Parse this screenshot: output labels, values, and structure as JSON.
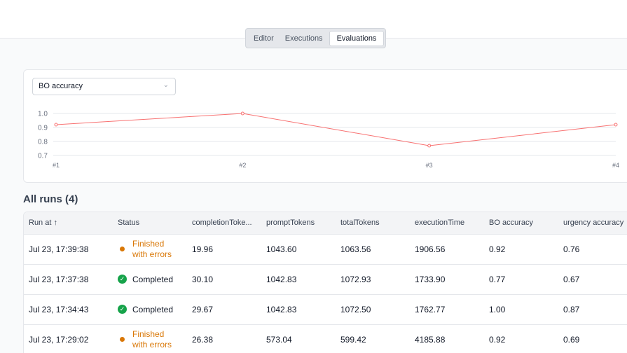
{
  "tabs": [
    {
      "label": "Editor",
      "active": false
    },
    {
      "label": "Executions",
      "active": false
    },
    {
      "label": "Evaluations",
      "active": true
    }
  ],
  "metric_select": {
    "value": "BO accuracy"
  },
  "chart_data": {
    "type": "line",
    "categories": [
      "#1",
      "#2",
      "#3",
      "#4"
    ],
    "values": [
      0.92,
      1.0,
      0.77,
      0.92
    ],
    "yticks": [
      "1.0",
      "0.9",
      "0.8",
      "0.7"
    ],
    "ylim": [
      0.7,
      1.0
    ],
    "color": "#f87171",
    "grid": true
  },
  "runs_title": "All runs (4)",
  "columns": [
    "Run at ↑",
    "Status",
    "completionToke...",
    "promptTokens",
    "totalTokens",
    "executionTime",
    "BO accuracy",
    "urgency accuracy"
  ],
  "rows": [
    {
      "run_at": "Jul 23, 17:39:38",
      "status": "Finished with errors",
      "status_type": "warn",
      "completion": "19.96",
      "prompt": "1043.60",
      "total": "1063.56",
      "exec": "1906.56",
      "bo": "0.92",
      "urgency": "0.76"
    },
    {
      "run_at": "Jul 23, 17:37:38",
      "status": "Completed",
      "status_type": "ok",
      "completion": "30.10",
      "prompt": "1042.83",
      "total": "1072.93",
      "exec": "1733.90",
      "bo": "0.77",
      "urgency": "0.67"
    },
    {
      "run_at": "Jul 23, 17:34:43",
      "status": "Completed",
      "status_type": "ok",
      "completion": "29.67",
      "prompt": "1042.83",
      "total": "1072.50",
      "exec": "1762.77",
      "bo": "1.00",
      "urgency": "0.87"
    },
    {
      "run_at": "Jul 23, 17:29:02",
      "status": "Finished with errors",
      "status_type": "warn",
      "completion": "26.38",
      "prompt": "573.04",
      "total": "599.42",
      "exec": "4185.88",
      "bo": "0.92",
      "urgency": "0.69"
    }
  ],
  "colors": {
    "warning": "#d97706",
    "success": "#16a34a",
    "line": "#f87171"
  }
}
